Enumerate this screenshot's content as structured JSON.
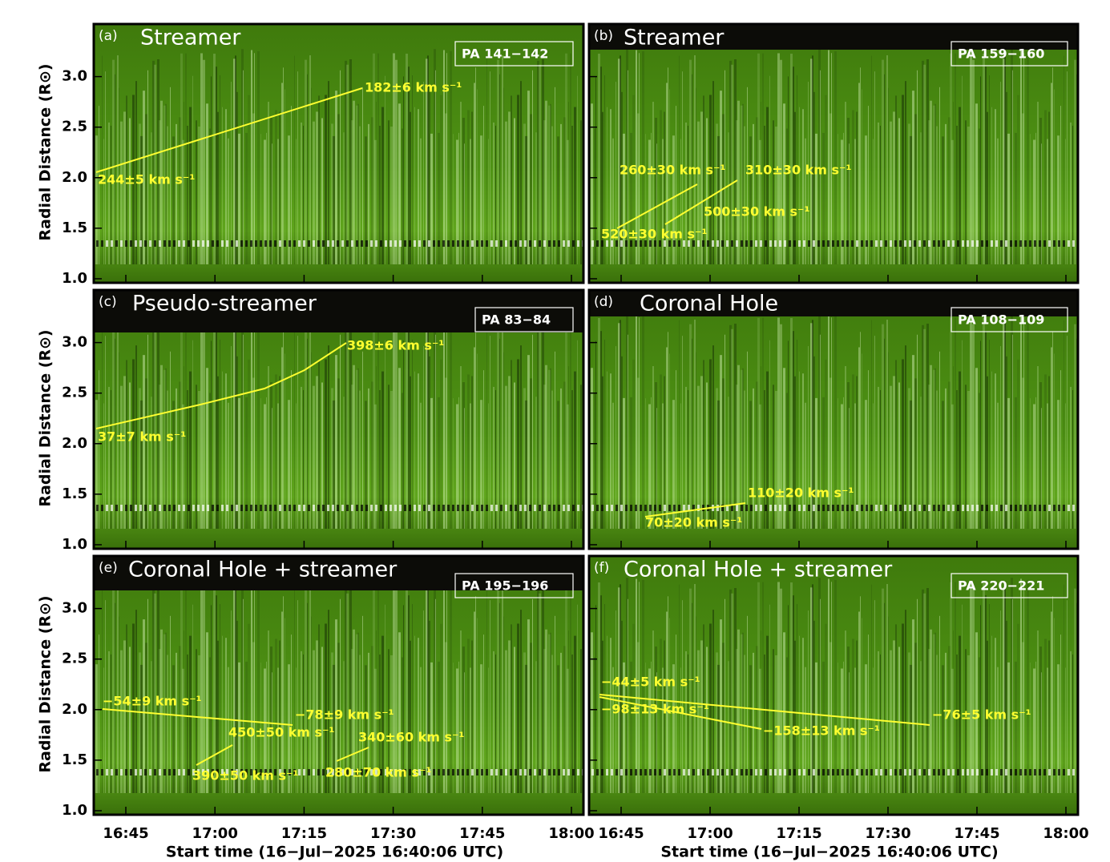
{
  "figure": {
    "y_axis": {
      "label": "Radial Distance (R⊙)",
      "ylim": [
        0.96,
        3.52
      ],
      "ticks": [
        {
          "value": 1,
          "label": "1.0"
        },
        {
          "value": 1.5,
          "label": "1.5"
        },
        {
          "value": 2,
          "label": "2.0"
        },
        {
          "value": 2.5,
          "label": "2.5"
        },
        {
          "value": 3,
          "label": "3.0"
        }
      ]
    },
    "x_axis": {
      "label": "Start time (16−Jul−2025 16:40:06 UTC)",
      "ticks": [
        "16:45",
        "17:00",
        "17:15",
        "17:30",
        "17:45",
        "18:00"
      ]
    },
    "panels": [
      {
        "label": "(a)",
        "title": "Streamer",
        "pa": "PA 141−142",
        "annotations": [
          "182±6 km s⁻¹",
          "244±5 km s⁻¹"
        ]
      },
      {
        "label": "(b)",
        "title": "Streamer",
        "pa": "PA 159−160",
        "annotations": [
          "260±30 km s⁻¹",
          "310±30 km s⁻¹",
          "500±30 km s⁻¹",
          "520±30 km s⁻¹"
        ]
      },
      {
        "label": "(c)",
        "title": "Pseudo-streamer",
        "pa": "PA 83−84",
        "annotations": [
          "398±6 km s⁻¹",
          "37±7 km s⁻¹"
        ]
      },
      {
        "label": "(d)",
        "title": "Coronal Hole",
        "pa": "PA 108−109",
        "annotations": [
          "110±20 km s⁻¹",
          "70±20 km s⁻¹"
        ]
      },
      {
        "label": "(e)",
        "title": "Coronal Hole + streamer",
        "pa": "PA 195−196",
        "annotations": [
          "−54±9 km s⁻¹",
          "−78±9 km s⁻¹",
          "450±50 km s⁻¹",
          "340±60 km s⁻¹",
          "390±50 km s⁻¹",
          "280±70 km s⁻¹"
        ]
      },
      {
        "label": "(f)",
        "title": "Coronal Hole + streamer",
        "pa": "PA 220−221",
        "annotations": [
          "−44±5 km s⁻¹",
          "−98±13 km s⁻¹",
          "−158±13 km s⁻¹",
          "−76±5 km s⁻¹"
        ]
      }
    ]
  }
}
